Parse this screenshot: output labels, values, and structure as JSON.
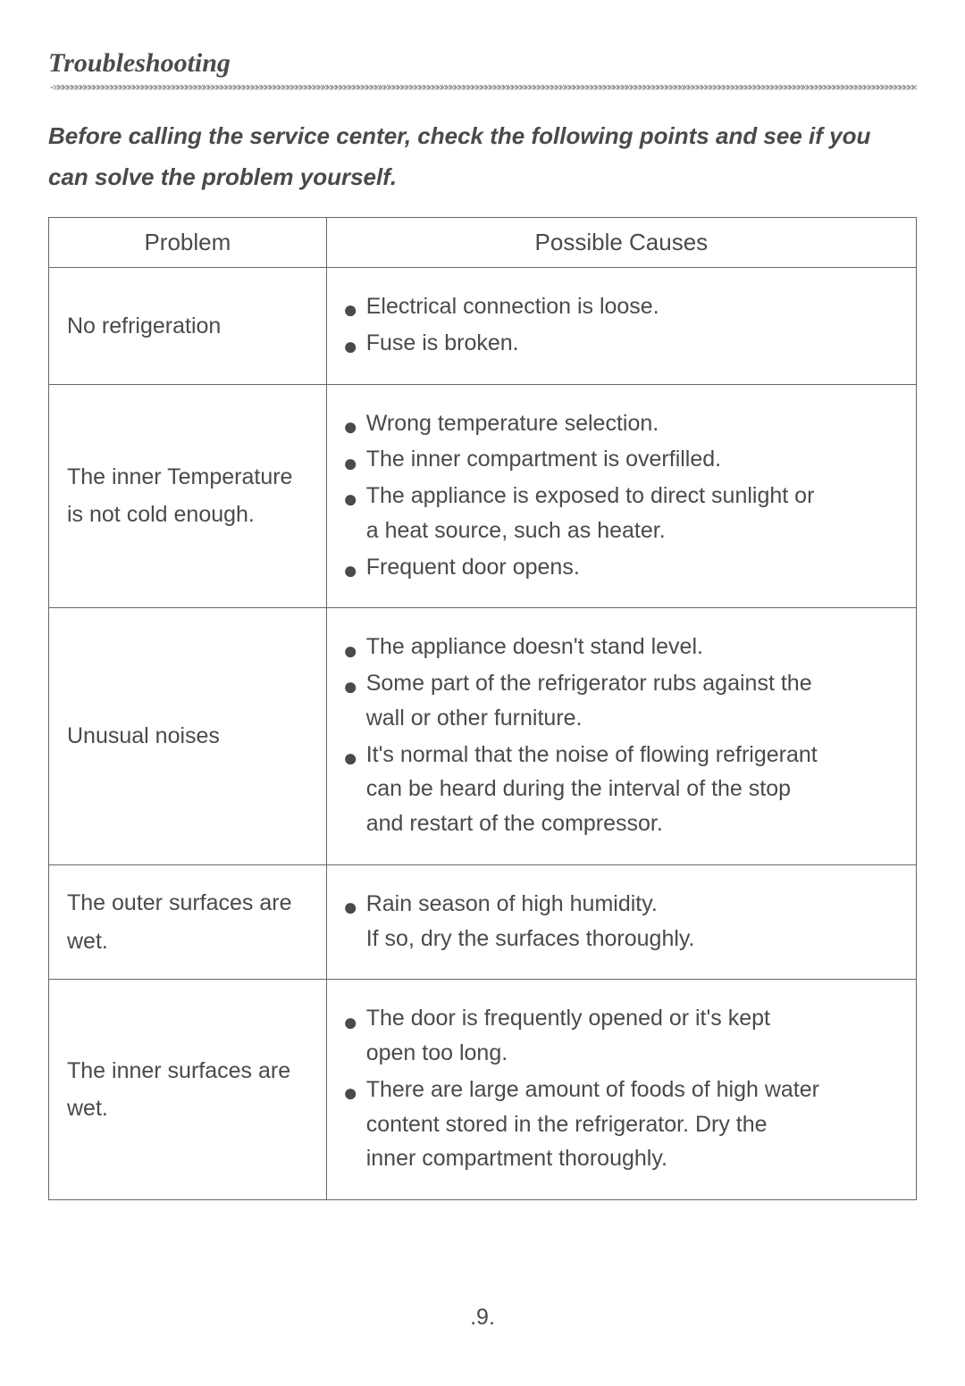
{
  "section_title": "Troubleshooting",
  "intro": "Before calling the service center, check the following points and see if you can solve the problem yourself.",
  "table": {
    "headers": {
      "problem": "Problem",
      "causes": "Possible Causes"
    },
    "rows": [
      {
        "problem": "No refrigeration",
        "causes": [
          [
            "Electrical connection is loose."
          ],
          [
            "Fuse is broken."
          ]
        ]
      },
      {
        "problem": "The inner Temperature is not cold enough.",
        "causes": [
          [
            "Wrong temperature selection."
          ],
          [
            "The inner compartment is overfilled."
          ],
          [
            "The appliance is exposed to direct sunlight or",
            "a heat source, such as heater."
          ],
          [
            "Frequent door opens."
          ]
        ]
      },
      {
        "problem": "Unusual noises",
        "causes": [
          [
            "The appliance doesn't stand level."
          ],
          [
            "Some part of the refrigerator rubs against the",
            "wall or other furniture."
          ],
          [
            "It's normal that the noise of flowing refrigerant",
            "can be heard during the interval of the stop",
            "and restart of the compressor."
          ]
        ]
      },
      {
        "problem": "The outer surfaces are wet.",
        "causes": [
          [
            "Rain season of high humidity.",
            "If so, dry the surfaces thoroughly."
          ]
        ]
      },
      {
        "problem": "The inner surfaces are wet.",
        "causes": [
          [
            "The door is frequently opened or it's kept",
            "open too long."
          ],
          [
            "There are large amount of foods of high water",
            "content stored in the refrigerator. Dry the",
            "inner compartment thoroughly."
          ]
        ]
      }
    ]
  },
  "page_number": ".9.",
  "colors": {
    "text": "#4a4a4a",
    "border": "#666666",
    "background": "#ffffff",
    "divider": "#888888"
  },
  "fonts": {
    "title_family": "Times New Roman",
    "body_family": "Arial",
    "title_size_pt": 22,
    "body_size_pt": 19
  }
}
